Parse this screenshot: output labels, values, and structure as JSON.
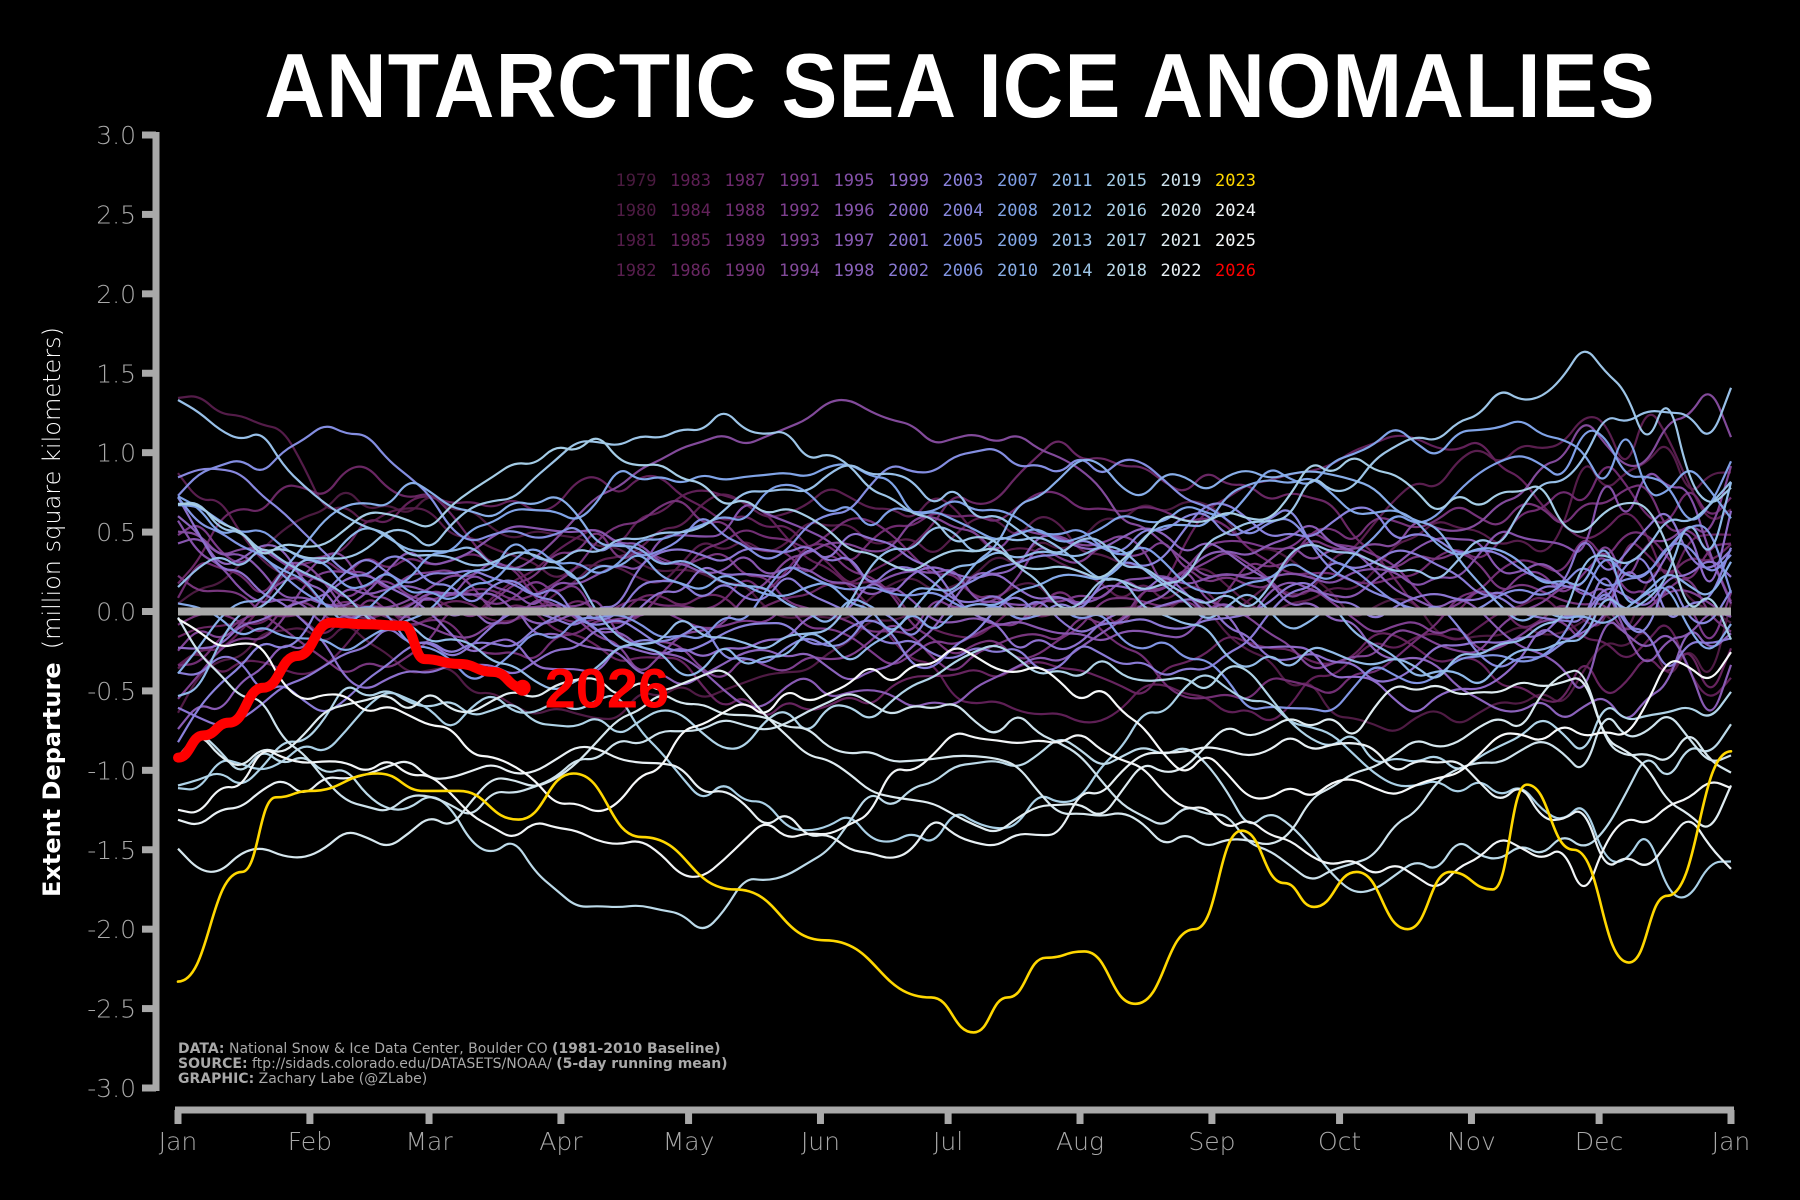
{
  "chart_data": {
    "type": "line",
    "title": "ANTARCTIC SEA ICE ANOMALIES",
    "xlabel": "",
    "ylabel": {
      "bold": "Extent Departure",
      "normal": "(million square kilometers)"
    },
    "ylim": [
      -3.0,
      3.0
    ],
    "yticks": [
      "3.0",
      "2.5",
      "2.0",
      "1.5",
      "1.0",
      "0.5",
      "0.0",
      "-0.5",
      "-1.0",
      "-1.5",
      "-2.0",
      "-2.5",
      "-3.0"
    ],
    "ytick_values": [
      3.0,
      2.5,
      2.0,
      1.5,
      1.0,
      0.5,
      0.0,
      -0.5,
      -1.0,
      -1.5,
      -2.0,
      -2.5,
      -3.0
    ],
    "xlim_days": [
      0,
      365
    ],
    "xticks": [
      "Jan",
      "Feb",
      "Mar",
      "Apr",
      "May",
      "Jun",
      "Jul",
      "Aug",
      "Sep",
      "Oct",
      "Nov",
      "Dec",
      "Jan"
    ],
    "xtick_days": [
      0,
      31,
      59,
      90,
      120,
      151,
      181,
      212,
      243,
      273,
      304,
      334,
      365
    ],
    "zero_line": {
      "value": 0.0,
      "color": "#a9a9a9"
    },
    "grid": false,
    "legend_placement": "top-center",
    "legend": [
      [
        "1979",
        "1983",
        "1987",
        "1991",
        "1995",
        "1999",
        "2003",
        "2007",
        "2011",
        "2015",
        "2019",
        "2023"
      ],
      [
        "1980",
        "1984",
        "1988",
        "1992",
        "1996",
        "2000",
        "2004",
        "2008",
        "2012",
        "2016",
        "2020",
        "2024"
      ],
      [
        "1981",
        "1985",
        "1989",
        "1993",
        "1997",
        "2001",
        "2005",
        "2009",
        "2013",
        "2017",
        "2021",
        "2025"
      ],
      [
        "1982",
        "1986",
        "1990",
        "1994",
        "1998",
        "2002",
        "2006",
        "2010",
        "2014",
        "2018",
        "2022",
        "2026"
      ]
    ],
    "legend_colors": [
      [
        "#4a1a3f",
        "#5e1f55",
        "#6e2a6e",
        "#7b3a8a",
        "#8450a8",
        "#8f6ac8",
        "#8a82dc",
        "#7f9fe6",
        "#8eb8e8",
        "#a5cde6",
        "#cde2ec",
        "#ffd700"
      ],
      [
        "#4f1b44",
        "#622159",
        "#712e73",
        "#7e3f8f",
        "#8755ad",
        "#8d70cd",
        "#8888de",
        "#80a4e7",
        "#93bce8",
        "#aad0e6",
        "#d6e7ee",
        "#f2f5f7"
      ],
      [
        "#541c49",
        "#66245e",
        "#743278",
        "#804494",
        "#895bb4",
        "#8b76d2",
        "#848ee1",
        "#84a9e8",
        "#98c0e8",
        "#b0d4e8",
        "#dfecf1",
        "#f7f9fa"
      ],
      [
        "#591e4e",
        "#692763",
        "#77367d",
        "#824a9a",
        "#8b62bb",
        "#8a7bd6",
        "#8195e3",
        "#88aee8",
        "#9dc5e7",
        "#bcdae9",
        "#e8f0f4",
        "#ff0000"
      ]
    ],
    "highlighted_series": [
      {
        "name": "2023",
        "color": "#ffd700",
        "days": [
          0,
          15,
          23,
          31,
          47,
          58,
          66,
          80,
          93,
          109,
          131,
          152,
          177,
          187,
          195,
          204,
          213,
          225,
          239,
          250,
          260,
          267,
          277,
          289,
          299,
          309,
          317,
          328,
          341,
          350,
          365
        ],
        "values": [
          -2.33,
          -1.64,
          -1.17,
          -1.13,
          -1.02,
          -1.13,
          -1.13,
          -1.31,
          -1.02,
          -1.42,
          -1.75,
          -2.07,
          -2.43,
          -2.65,
          -2.43,
          -2.18,
          -2.14,
          -2.47,
          -2.0,
          -1.38,
          -1.71,
          -1.86,
          -1.64,
          -2.0,
          -1.64,
          -1.75,
          -1.09,
          -1.5,
          -2.21,
          -1.79,
          -0.88
        ]
      },
      {
        "name": "2026",
        "color": "#ff0000",
        "days": [
          0,
          6,
          12,
          20,
          28,
          36,
          44,
          53,
          58,
          66,
          74,
          81
        ],
        "values": [
          -0.92,
          -0.78,
          -0.7,
          -0.48,
          -0.28,
          -0.07,
          -0.08,
          -0.09,
          -0.3,
          -0.33,
          -0.38,
          -0.48
        ],
        "label": "2026"
      }
    ],
    "background_series_note": "1979-2022, 2024, 2025 daily anomalies (5-day running mean), mostly between -1.8 and +1.8"
  },
  "credits": {
    "data_label": "DATA:",
    "data_text": " National Snow & Ice Data Center, Boulder CO ",
    "data_bold": "(1981-2010 Baseline)",
    "source_label": "SOURCE:",
    "source_text": " ftp://sidads.colorado.edu/DATASETS/NOAA/ ",
    "source_bold": "(5-day running mean)",
    "graphic_label": "GRAPHIC:",
    "graphic_text": " Zachary Labe (@ZLabe)"
  }
}
